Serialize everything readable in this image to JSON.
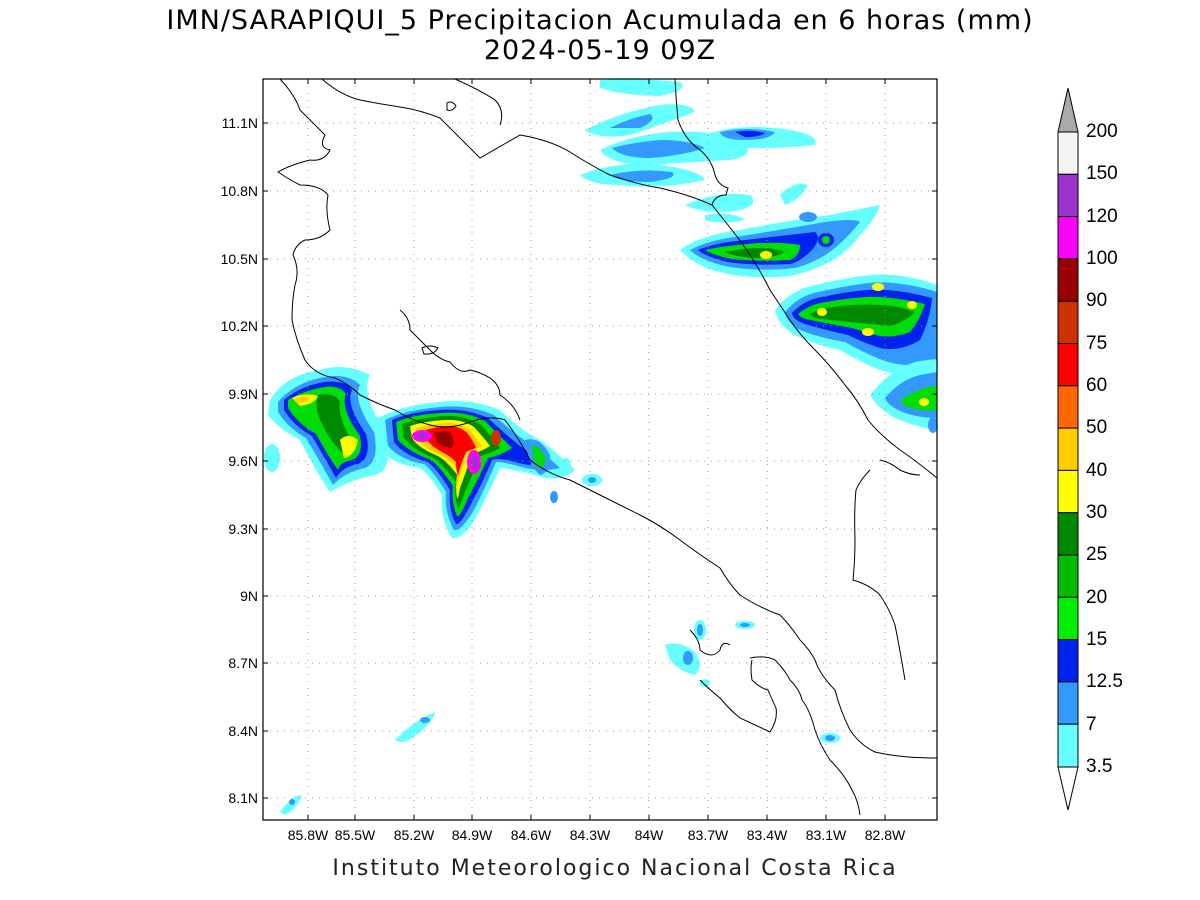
{
  "title": {
    "line1": "IMN/SARAPIQUI_5 Precipitacion Acumulada en 6 horas (mm)",
    "line2": "2024-05-19 09Z"
  },
  "footer": "Instituto Meteorologico Nacional Costa Rica",
  "map": {
    "lon_range": [
      -85.95,
      -82.55
    ],
    "lat_range": [
      8.0,
      11.25
    ],
    "grid_lines": "dotted",
    "lat_ticks": [
      "11.1N",
      "10.8N",
      "10.5N",
      "10.2N",
      "9.9N",
      "9.6N",
      "9.3N",
      "9N",
      "8.7N",
      "8.4N",
      "8.1N"
    ],
    "lon_ticks": [
      "85.8W",
      "85.5W",
      "85.2W",
      "84.9W",
      "84.6W",
      "84.3W",
      "84W",
      "83.7W",
      "83.4W",
      "83.1W",
      "82.8W"
    ]
  },
  "colorbar": {
    "labels": [
      "200",
      "150",
      "120",
      "100",
      "90",
      "75",
      "60",
      "50",
      "40",
      "30",
      "25",
      "20",
      "15",
      "12.5",
      "7",
      "3.5"
    ],
    "colors_bottom_to_top": [
      "#66ffff",
      "#3399ff",
      "#0022ee",
      "#00ee00",
      "#00bb00",
      "#008800",
      "#ffff00",
      "#ffcc00",
      "#ff6600",
      "#ff0000",
      "#cc3300",
      "#990000",
      "#ff00ff",
      "#9933cc",
      "#f4f4f4"
    ],
    "top_arrow_color": "#aaaaaa",
    "bottom_arrow_color": "#ffffff"
  }
}
